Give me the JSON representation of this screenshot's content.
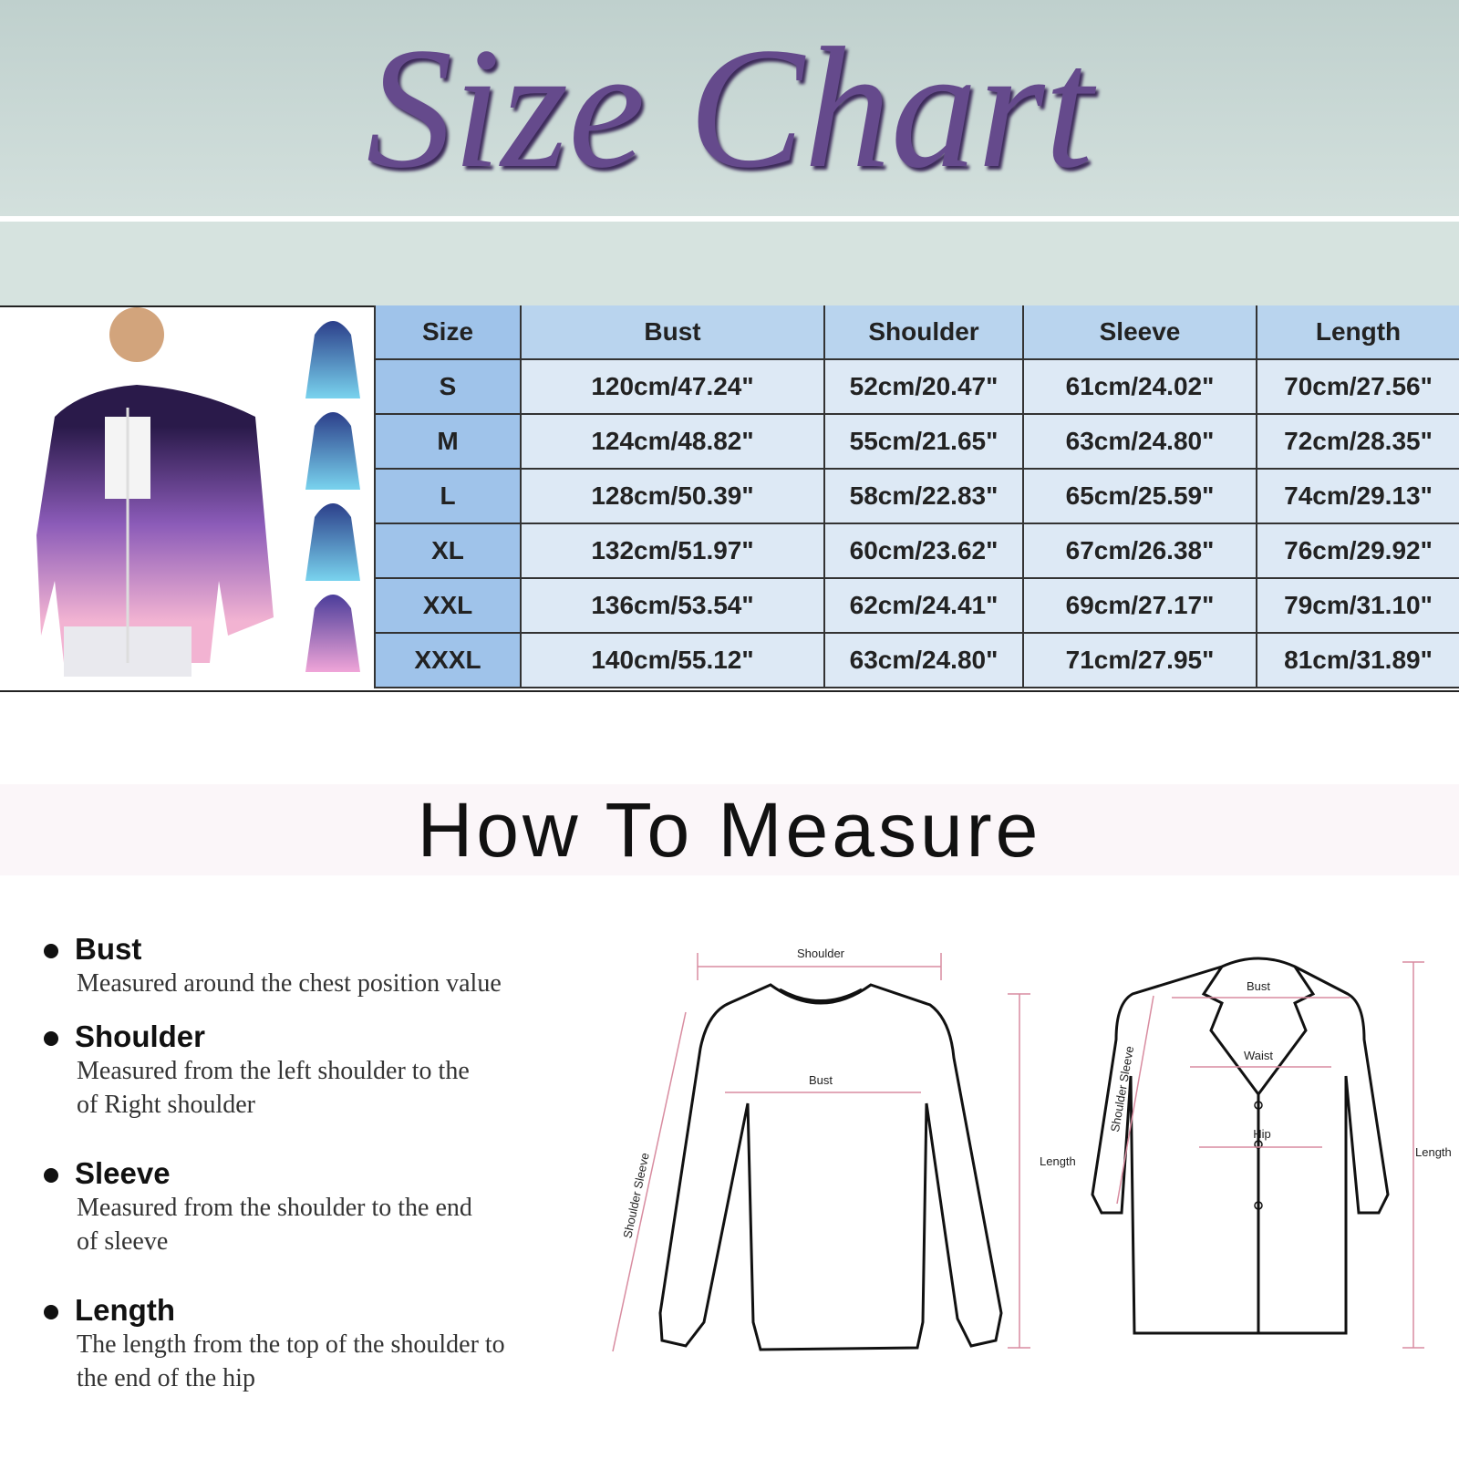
{
  "header": {
    "title": "Size Chart"
  },
  "table": {
    "columns": [
      "Size",
      "Bust",
      "Shoulder",
      "Sleeve",
      "Length"
    ],
    "rows": [
      [
        "S",
        "120cm/47.24\"",
        "52cm/20.47\"",
        "61cm/24.02\"",
        "70cm/27.56\""
      ],
      [
        "M",
        "124cm/48.82\"",
        "55cm/21.65\"",
        "63cm/24.80\"",
        "72cm/28.35\""
      ],
      [
        "L",
        "128cm/50.39\"",
        "58cm/22.83\"",
        "65cm/25.59\"",
        "74cm/29.13\""
      ],
      [
        "XL",
        "132cm/51.97\"",
        "60cm/23.62\"",
        "67cm/26.38\"",
        "76cm/29.92\""
      ],
      [
        "XXL",
        "136cm/53.54\"",
        "62cm/24.41\"",
        "69cm/27.17\"",
        "79cm/31.10\""
      ],
      [
        "XXXL",
        "140cm/55.12\"",
        "63cm/24.80\"",
        "71cm/27.95\"",
        "81cm/31.89\""
      ]
    ]
  },
  "measure": {
    "title": "How To Measure",
    "items": [
      {
        "name": "Bust",
        "lines": [
          "Measured around the chest position value"
        ]
      },
      {
        "name": "Shoulder",
        "lines": [
          "Measured from the left shoulder to the",
          "of Right shoulder"
        ]
      },
      {
        "name": "Sleeve",
        "lines": [
          "Measured from the shoulder to the end",
          "of sleeve"
        ]
      },
      {
        "name": "Length",
        "lines": [
          "The length from the top of the shoulder to",
          "the end of the hip"
        ]
      }
    ]
  },
  "diagrams": {
    "sweater": {
      "shoulder": "Shoulder",
      "bust": "Bust",
      "sleeve": "Shoulder Sleeve",
      "length": "Length"
    },
    "coat": {
      "bust": "Bust",
      "waist": "Waist",
      "hip": "Hip",
      "sleeve": "Shoulder Sleeve",
      "length": "Length"
    }
  }
}
